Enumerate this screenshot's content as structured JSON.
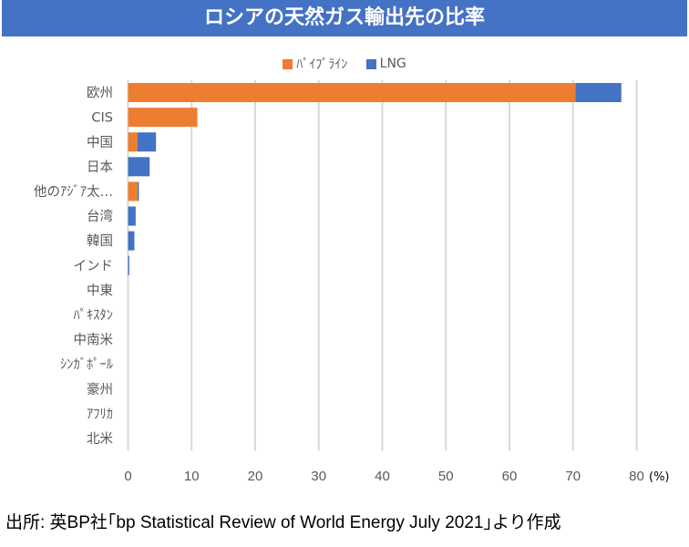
{
  "chart_data": {
    "type": "bar",
    "orientation": "horizontal",
    "stacked": true,
    "title": "ロシアの天然ガス輸出先の比率",
    "categories": [
      "欧州",
      "CIS",
      "中国",
      "日本",
      "他のｱｼﾞｱ太…",
      "台湾",
      "韓国",
      "インド",
      "中東",
      "ﾊﾟｷｽﾀﾝ",
      "中南米",
      "ｼﾝｶﾞﾎﾟｰﾙ",
      "豪州",
      "ｱﾌﾘｶ",
      "北米"
    ],
    "series": [
      {
        "name": "ﾊﾟｲﾌﾟﾗｲﾝ",
        "color": "#ed7d31",
        "values": [
          70.4,
          10.9,
          1.5,
          0,
          1.5,
          0,
          0,
          0,
          0,
          0,
          0,
          0,
          0,
          0,
          0
        ]
      },
      {
        "name": "LNG",
        "color": "#4472c4",
        "values": [
          7.2,
          0,
          2.9,
          3.4,
          0.2,
          1.2,
          1.0,
          0.2,
          0,
          0,
          0,
          0,
          0,
          0,
          0
        ]
      }
    ],
    "xlim": [
      0,
      80
    ],
    "xticks": [
      "0",
      "10",
      "20",
      "30",
      "40",
      "50",
      "60",
      "70",
      "80"
    ],
    "xlabel": "(%)",
    "grid": true,
    "legend_position": "top"
  },
  "source": "出所: 英BP社｢bp Statistical Review of World Energy July 2021｣より作成"
}
